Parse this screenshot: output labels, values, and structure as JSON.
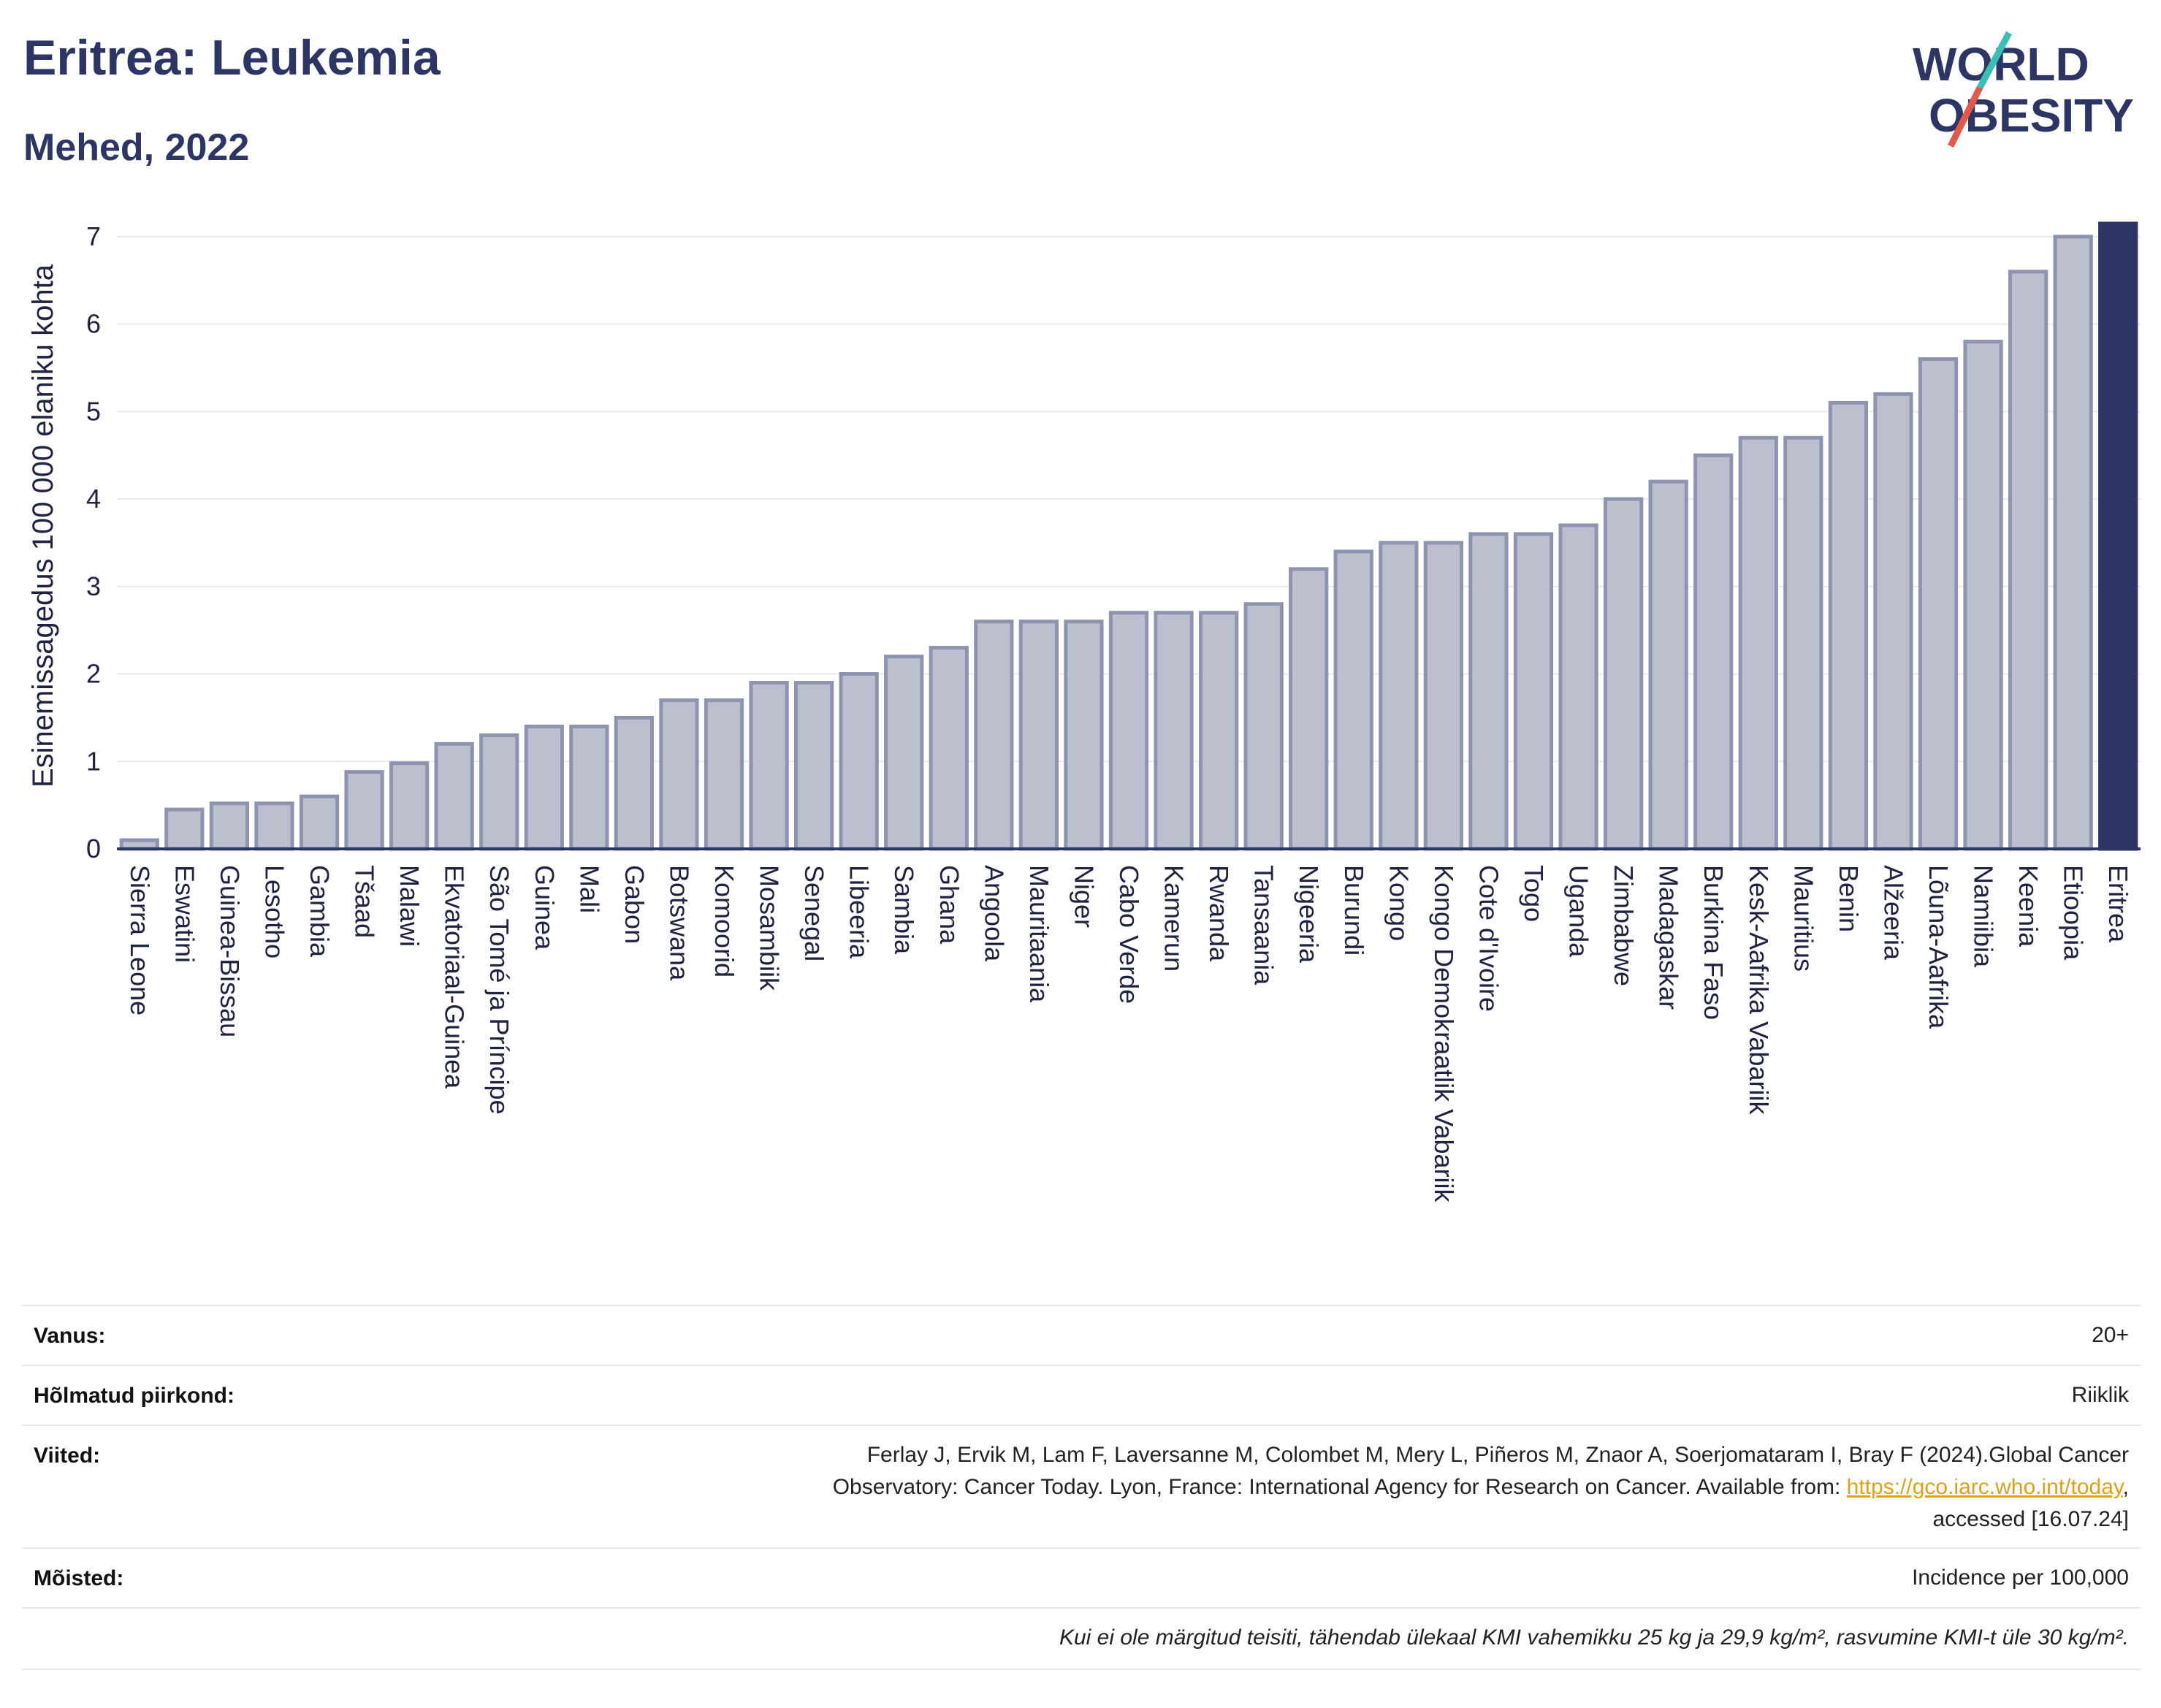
{
  "header": {
    "title": "Eritrea: Leukemia",
    "subtitle": "Mehed, 2022"
  },
  "logo": {
    "line1": "WORLD",
    "line2": "OBESITY",
    "accent_teal": "#3bbfb5",
    "accent_red": "#e05a4b",
    "text_color": "#2c3563"
  },
  "chart_data": {
    "type": "bar",
    "ylabel": "Esinemissagedus 100 000 elaniku kohta",
    "xlabel": "",
    "ylim": [
      0,
      7.2
    ],
    "yticks": [
      0,
      1,
      2,
      3,
      4,
      5,
      6,
      7
    ],
    "grid": true,
    "categories": [
      "Sierra Leone",
      "Eswatini",
      "Guinea-Bissau",
      "Lesotho",
      "Gambia",
      "Tšaad",
      "Malawi",
      "Ekvatoriaal-Guinea",
      "São Tomé ja Príncipe",
      "Guinea",
      "Mali",
      "Gabon",
      "Botswana",
      "Komoorid",
      "Mosambiik",
      "Senegal",
      "Libeeria",
      "Sambia",
      "Ghana",
      "Angoola",
      "Mauritaania",
      "Niger",
      "Cabo Verde",
      "Kamerun",
      "Rwanda",
      "Tansaania",
      "Nigeeria",
      "Burundi",
      "Kongo",
      "Kongo Demokraatlik Vabariik",
      "Cote d'Ivoire",
      "Togo",
      "Uganda",
      "Zimbabwe",
      "Madagaskar",
      "Burkina Faso",
      "Kesk-Aafrika Vabariik",
      "Mauritius",
      "Benin",
      "Alžeeria",
      "Lõuna-Aafrika",
      "Namiibia",
      "Keenia",
      "Etioopia",
      "Eritrea"
    ],
    "values": [
      0.1,
      0.45,
      0.52,
      0.52,
      0.6,
      0.88,
      0.98,
      1.2,
      1.3,
      1.4,
      1.4,
      1.5,
      1.7,
      1.7,
      1.9,
      1.9,
      2.0,
      2.2,
      2.3,
      2.6,
      2.6,
      2.6,
      2.7,
      2.7,
      2.7,
      2.8,
      3.2,
      3.4,
      3.5,
      3.5,
      3.6,
      3.6,
      3.7,
      4.0,
      4.2,
      4.5,
      4.7,
      4.7,
      5.1,
      5.2,
      5.6,
      5.8,
      6.6,
      7.0,
      7.15
    ],
    "highlight": "Eritrea",
    "colors": {
      "bar": "#bcc0ce",
      "bar_edge": "#8e93b0",
      "highlight": "#2c3563",
      "grid": "#e8e9ef"
    }
  },
  "info": {
    "age_label": "Vanus:",
    "age_value": "20+",
    "region_label": "Hõlmatud piirkond:",
    "region_value": "Riiklik",
    "refs_label": "Viited:",
    "refs_line1": "Ferlay J, Ervik M, Lam F, Laversanne M, Colombet M, Mery L, Piñeros M, Znaor A, Soerjomataram I, Bray F (2024).Global Cancer",
    "refs_line2": "Observatory: Cancer Today. Lyon, France: International Agency for Research on Cancer. Available from: ",
    "refs_link": "https://gco.iarc.who.int/today",
    "refs_line2_end": ",",
    "refs_line3": "accessed [16.07.24]",
    "defs_label": "Mõisted:",
    "defs_value": "Incidence per 100,000",
    "note": "Kui ei ole märgitud teisiti, tähendab ülekaal KMI vahemikku 25 kg ja 29,9 kg/m², rasvumine KMI-t üle 30 kg/m²."
  }
}
